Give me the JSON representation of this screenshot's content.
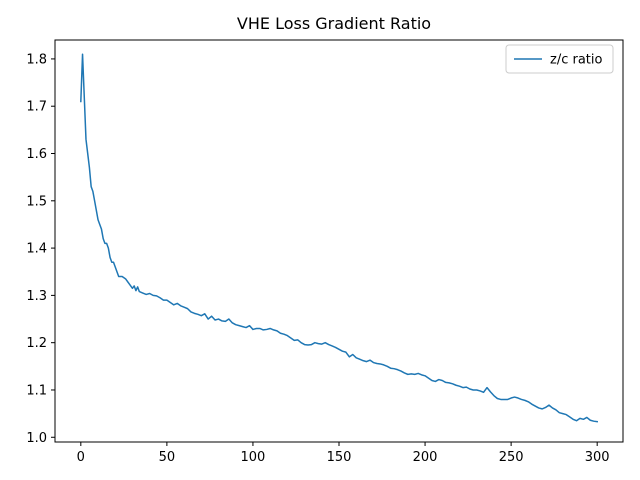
{
  "chart_data": {
    "type": "line",
    "title": "VHE Loss Gradient Ratio",
    "xlabel": "",
    "ylabel": "",
    "xlim": [
      -15,
      315
    ],
    "ylim": [
      0.99,
      1.84
    ],
    "x_ticks": [
      0,
      50,
      100,
      150,
      200,
      250,
      300
    ],
    "y_ticks": [
      1.0,
      1.1,
      1.2,
      1.3,
      1.4,
      1.5,
      1.6,
      1.7,
      1.8
    ],
    "grid": false,
    "legend": {
      "placement": "top-right"
    },
    "series": [
      {
        "name": "z/c ratio",
        "color": "#1f77b4",
        "points": [
          [
            0,
            1.71
          ],
          [
            1,
            1.81
          ],
          [
            2,
            1.72
          ],
          [
            3,
            1.63
          ],
          [
            4,
            1.6
          ],
          [
            5,
            1.57
          ],
          [
            6,
            1.53
          ],
          [
            7,
            1.52
          ],
          [
            8,
            1.5
          ],
          [
            9,
            1.48
          ],
          [
            10,
            1.46
          ],
          [
            11,
            1.45
          ],
          [
            12,
            1.44
          ],
          [
            13,
            1.42
          ],
          [
            14,
            1.41
          ],
          [
            15,
            1.41
          ],
          [
            16,
            1.4
          ],
          [
            17,
            1.38
          ],
          [
            18,
            1.37
          ],
          [
            19,
            1.37
          ],
          [
            20,
            1.36
          ],
          [
            21,
            1.35
          ],
          [
            22,
            1.34
          ],
          [
            23,
            1.34
          ],
          [
            24,
            1.34
          ],
          [
            26,
            1.335
          ],
          [
            28,
            1.325
          ],
          [
            30,
            1.315
          ],
          [
            31,
            1.32
          ],
          [
            32,
            1.31
          ],
          [
            33,
            1.318
          ],
          [
            34,
            1.308
          ],
          [
            36,
            1.305
          ],
          [
            38,
            1.302
          ],
          [
            40,
            1.304
          ],
          [
            42,
            1.3
          ],
          [
            44,
            1.299
          ],
          [
            46,
            1.295
          ],
          [
            48,
            1.29
          ],
          [
            50,
            1.29
          ],
          [
            52,
            1.285
          ],
          [
            54,
            1.28
          ],
          [
            56,
            1.283
          ],
          [
            58,
            1.278
          ],
          [
            60,
            1.275
          ],
          [
            62,
            1.272
          ],
          [
            64,
            1.265
          ],
          [
            66,
            1.262
          ],
          [
            68,
            1.26
          ],
          [
            70,
            1.257
          ],
          [
            72,
            1.261
          ],
          [
            74,
            1.25
          ],
          [
            76,
            1.256
          ],
          [
            78,
            1.248
          ],
          [
            80,
            1.25
          ],
          [
            82,
            1.246
          ],
          [
            84,
            1.245
          ],
          [
            86,
            1.25
          ],
          [
            88,
            1.242
          ],
          [
            90,
            1.238
          ],
          [
            92,
            1.236
          ],
          [
            94,
            1.234
          ],
          [
            96,
            1.232
          ],
          [
            98,
            1.236
          ],
          [
            100,
            1.228
          ],
          [
            102,
            1.23
          ],
          [
            104,
            1.23
          ],
          [
            106,
            1.227
          ],
          [
            108,
            1.228
          ],
          [
            110,
            1.23
          ],
          [
            112,
            1.227
          ],
          [
            114,
            1.225
          ],
          [
            116,
            1.22
          ],
          [
            118,
            1.218
          ],
          [
            120,
            1.215
          ],
          [
            122,
            1.21
          ],
          [
            124,
            1.205
          ],
          [
            126,
            1.206
          ],
          [
            128,
            1.2
          ],
          [
            130,
            1.196
          ],
          [
            132,
            1.195
          ],
          [
            134,
            1.196
          ],
          [
            136,
            1.2
          ],
          [
            138,
            1.198
          ],
          [
            140,
            1.197
          ],
          [
            142,
            1.2
          ],
          [
            144,
            1.196
          ],
          [
            146,
            1.193
          ],
          [
            148,
            1.19
          ],
          [
            150,
            1.186
          ],
          [
            152,
            1.182
          ],
          [
            154,
            1.18
          ],
          [
            156,
            1.17
          ],
          [
            158,
            1.175
          ],
          [
            160,
            1.168
          ],
          [
            162,
            1.165
          ],
          [
            164,
            1.162
          ],
          [
            166,
            1.16
          ],
          [
            168,
            1.163
          ],
          [
            170,
            1.158
          ],
          [
            172,
            1.156
          ],
          [
            174,
            1.155
          ],
          [
            176,
            1.153
          ],
          [
            178,
            1.15
          ],
          [
            180,
            1.146
          ],
          [
            182,
            1.145
          ],
          [
            184,
            1.143
          ],
          [
            186,
            1.14
          ],
          [
            188,
            1.136
          ],
          [
            190,
            1.133
          ],
          [
            192,
            1.134
          ],
          [
            194,
            1.133
          ],
          [
            196,
            1.135
          ],
          [
            198,
            1.132
          ],
          [
            200,
            1.13
          ],
          [
            202,
            1.125
          ],
          [
            204,
            1.12
          ],
          [
            206,
            1.118
          ],
          [
            208,
            1.122
          ],
          [
            210,
            1.12
          ],
          [
            212,
            1.116
          ],
          [
            214,
            1.115
          ],
          [
            216,
            1.113
          ],
          [
            218,
            1.11
          ],
          [
            220,
            1.108
          ],
          [
            222,
            1.105
          ],
          [
            224,
            1.106
          ],
          [
            226,
            1.102
          ],
          [
            228,
            1.1
          ],
          [
            230,
            1.1
          ],
          [
            232,
            1.098
          ],
          [
            234,
            1.095
          ],
          [
            236,
            1.105
          ],
          [
            238,
            1.096
          ],
          [
            240,
            1.088
          ],
          [
            242,
            1.082
          ],
          [
            244,
            1.08
          ],
          [
            246,
            1.08
          ],
          [
            248,
            1.08
          ],
          [
            250,
            1.083
          ],
          [
            252,
            1.085
          ],
          [
            254,
            1.083
          ],
          [
            256,
            1.08
          ],
          [
            258,
            1.078
          ],
          [
            260,
            1.075
          ],
          [
            262,
            1.07
          ],
          [
            264,
            1.066
          ],
          [
            266,
            1.062
          ],
          [
            268,
            1.06
          ],
          [
            270,
            1.063
          ],
          [
            272,
            1.068
          ],
          [
            274,
            1.062
          ],
          [
            276,
            1.058
          ],
          [
            278,
            1.052
          ],
          [
            280,
            1.05
          ],
          [
            282,
            1.048
          ],
          [
            284,
            1.043
          ],
          [
            286,
            1.038
          ],
          [
            288,
            1.035
          ],
          [
            290,
            1.04
          ],
          [
            292,
            1.038
          ],
          [
            294,
            1.042
          ],
          [
            296,
            1.036
          ],
          [
            298,
            1.034
          ],
          [
            300,
            1.033
          ]
        ]
      }
    ]
  }
}
